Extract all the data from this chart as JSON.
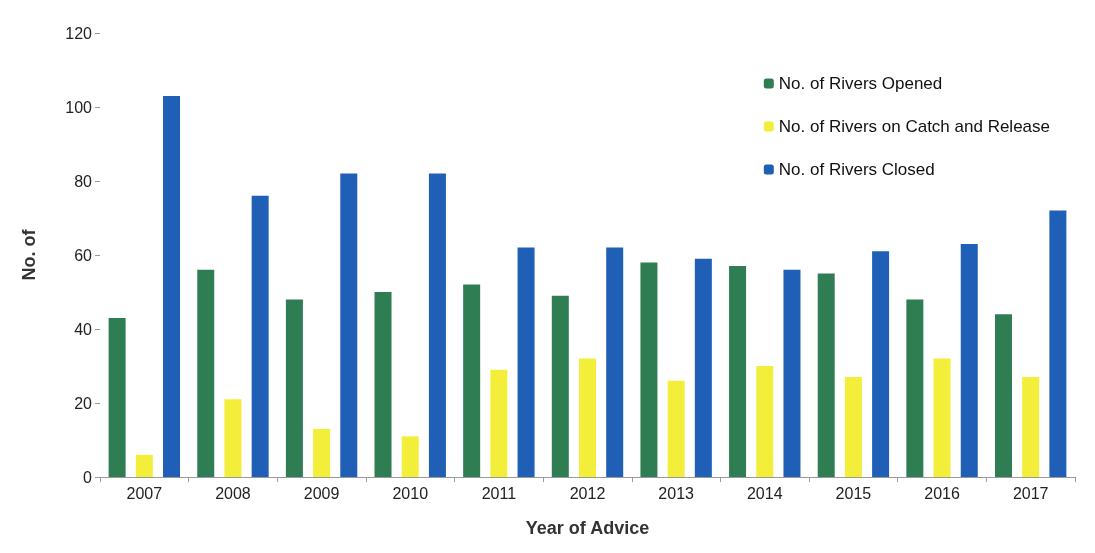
{
  "chart_data": {
    "type": "bar",
    "xlabel": "Year of Advice",
    "ylabel": "No. of",
    "categories": [
      "2007",
      "2008",
      "2009",
      "2010",
      "2011",
      "2012",
      "2013",
      "2014",
      "2015",
      "2016",
      "2017"
    ],
    "series": [
      {
        "name": "No. of Rivers Opened",
        "color": "#2f7d52",
        "values": [
          43,
          56,
          48,
          50,
          52,
          49,
          58,
          57,
          55,
          48,
          44
        ]
      },
      {
        "name": "No. of Rivers on Catch and Release",
        "color": "#f2ee3a",
        "values": [
          6,
          21,
          13,
          11,
          29,
          32,
          26,
          30,
          27,
          32,
          27
        ]
      },
      {
        "name": "No. of Rivers Closed",
        "color": "#1f5fb5",
        "values": [
          103,
          76,
          82,
          82,
          62,
          62,
          59,
          56,
          61,
          63,
          72
        ]
      }
    ],
    "ylim": [
      0,
      120
    ],
    "yticks": [
      0,
      20,
      40,
      60,
      80,
      100,
      120
    ],
    "grid": false,
    "legend": "top right"
  }
}
